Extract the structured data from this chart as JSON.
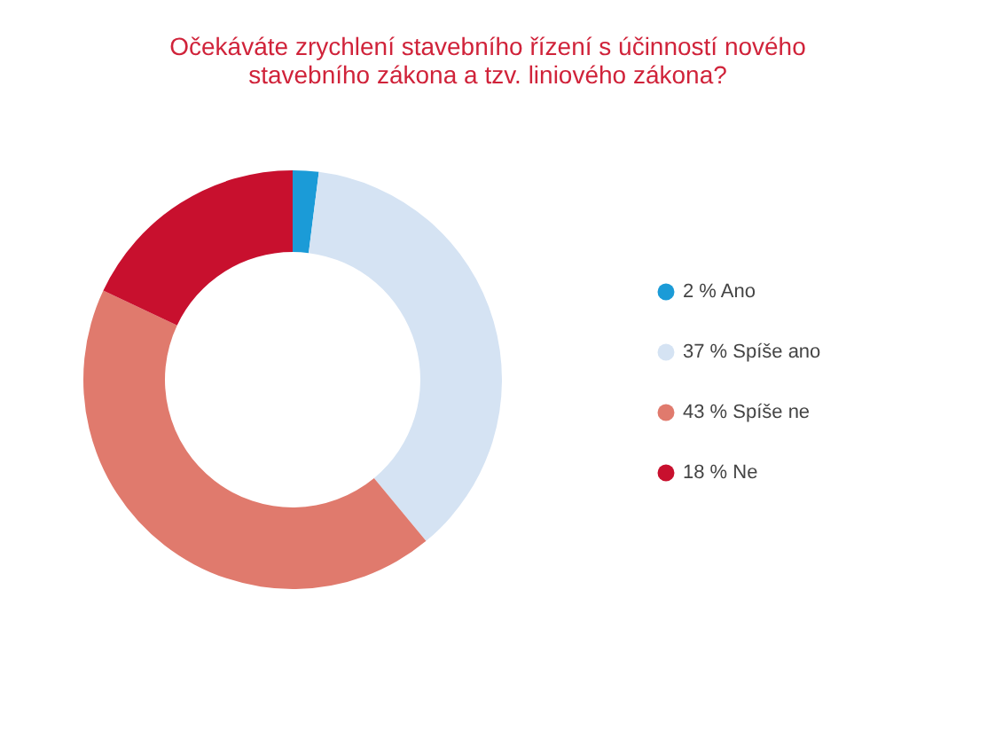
{
  "chart_data": {
    "type": "donut",
    "title": [
      "Očekáváte zrychlení stavebního řízení s účinností nového",
      "stavebního zákona a tzv. liniového zákona?"
    ],
    "categories": [
      "Ano",
      "Spíše ano",
      "Spíše ne",
      "Ne"
    ],
    "values": [
      2,
      37,
      43,
      18
    ],
    "value_labels": [
      "2 %",
      "37 %",
      "43 %",
      "18 %"
    ],
    "colors": [
      "#1b9bd7",
      "#d5e3f3",
      "#e07a6d",
      "#c8102e"
    ],
    "legend": "right"
  }
}
